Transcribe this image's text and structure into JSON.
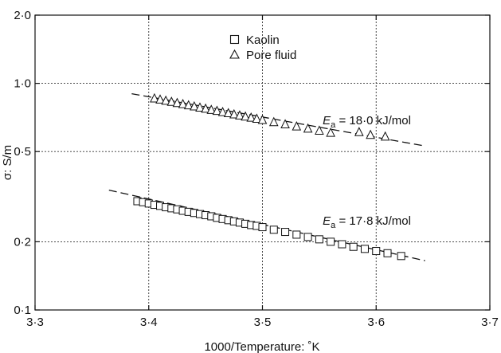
{
  "chart_data": {
    "type": "scatter",
    "title": "",
    "xlabel": "1000/Temperature: ˚K",
    "ylabel": "σ: S/m",
    "xlim": [
      3.3,
      3.7
    ],
    "ylim": [
      0.1,
      2.0
    ],
    "y_scale": "log",
    "grid": true,
    "legend_position": "top-center",
    "x_ticks": [
      {
        "value": 3.3,
        "label": "3·3"
      },
      {
        "value": 3.4,
        "label": "3·4"
      },
      {
        "value": 3.5,
        "label": "3·5"
      },
      {
        "value": 3.6,
        "label": "3·6"
      },
      {
        "value": 3.7,
        "label": "3·7"
      }
    ],
    "y_ticks": [
      {
        "value": 0.1,
        "label": "0·1"
      },
      {
        "value": 0.2,
        "label": "0·2"
      },
      {
        "value": 0.5,
        "label": "0·5"
      },
      {
        "value": 1.0,
        "label": "1·0"
      },
      {
        "value": 2.0,
        "label": "2·0"
      }
    ],
    "series": [
      {
        "name": "Kaolin",
        "marker": "square",
        "x": [
          3.39,
          3.395,
          3.4,
          3.405,
          3.41,
          3.415,
          3.42,
          3.425,
          3.43,
          3.435,
          3.44,
          3.445,
          3.45,
          3.455,
          3.46,
          3.465,
          3.47,
          3.475,
          3.48,
          3.485,
          3.49,
          3.495,
          3.5,
          3.51,
          3.52,
          3.53,
          3.54,
          3.55,
          3.56,
          3.57,
          3.58,
          3.59,
          3.6,
          3.61,
          3.622
        ],
        "y": [
          0.302,
          0.299,
          0.295,
          0.291,
          0.288,
          0.284,
          0.281,
          0.278,
          0.274,
          0.271,
          0.268,
          0.265,
          0.262,
          0.259,
          0.255,
          0.252,
          0.249,
          0.246,
          0.243,
          0.24,
          0.237,
          0.235,
          0.232,
          0.226,
          0.221,
          0.215,
          0.21,
          0.205,
          0.2,
          0.195,
          0.19,
          0.186,
          0.182,
          0.178,
          0.173
        ]
      },
      {
        "name": "Pore fluid",
        "marker": "triangle",
        "x": [
          3.405,
          3.41,
          3.415,
          3.42,
          3.425,
          3.43,
          3.435,
          3.44,
          3.445,
          3.45,
          3.455,
          3.46,
          3.465,
          3.47,
          3.475,
          3.48,
          3.485,
          3.49,
          3.495,
          3.5,
          3.51,
          3.52,
          3.53,
          3.54,
          3.55,
          3.56,
          3.585,
          3.595,
          3.608
        ],
        "y": [
          0.855,
          0.845,
          0.835,
          0.826,
          0.816,
          0.807,
          0.797,
          0.788,
          0.779,
          0.77,
          0.761,
          0.753,
          0.744,
          0.736,
          0.727,
          0.719,
          0.711,
          0.703,
          0.695,
          0.687,
          0.672,
          0.657,
          0.643,
          0.629,
          0.616,
          0.603,
          0.607,
          0.59,
          0.58
        ]
      }
    ],
    "fit_lines": [
      {
        "series": "Pore fluid",
        "x": [
          3.385,
          3.643
        ],
        "y": [
          0.9,
          0.529
        ]
      },
      {
        "series": "Kaolin",
        "x": [
          3.365,
          3.643
        ],
        "y": [
          0.338,
          0.165
        ]
      }
    ],
    "annotations": [
      {
        "prefix": "E",
        "subscript": "a",
        "text": " = 18·0 kJ/mol",
        "x": 3.553,
        "y": 0.66
      },
      {
        "prefix": "E",
        "subscript": "a",
        "text": " = 17·8 kJ/mol",
        "x": 3.553,
        "y": 0.238
      }
    ]
  }
}
